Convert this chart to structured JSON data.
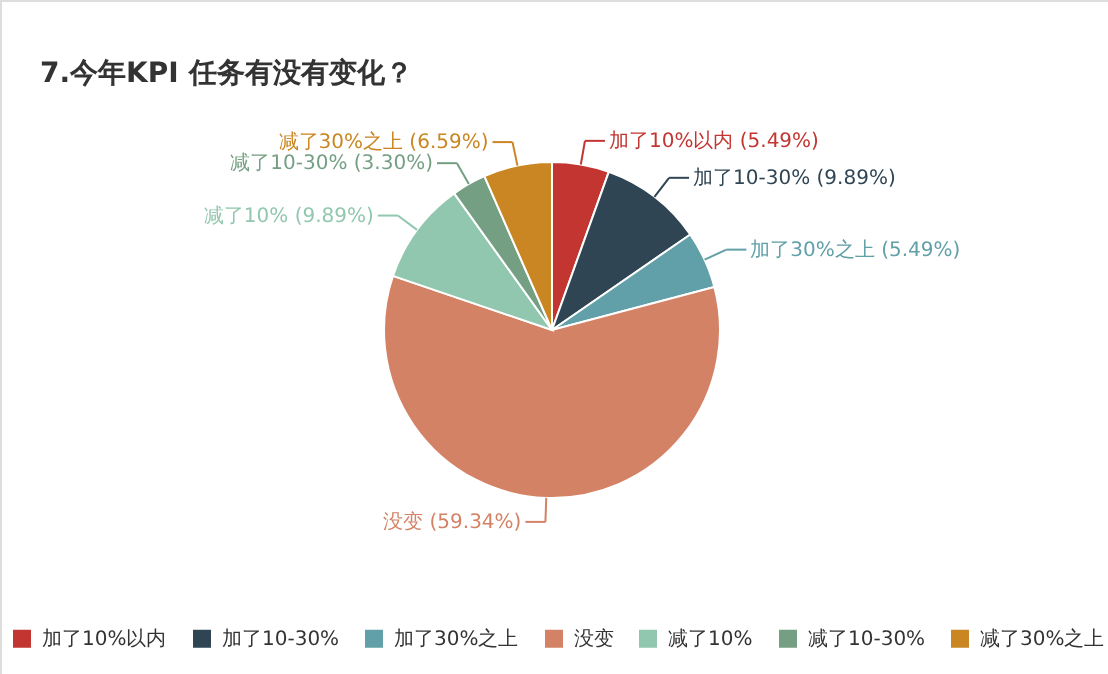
{
  "chart_data": {
    "type": "pie",
    "title": "7.今年KPI 任务有没有变化？",
    "categories": [
      "加了10%以内",
      "加了10-30%",
      "加了30%之上",
      "没变",
      "减了10%",
      "减了10-30%",
      "减了30%之上"
    ],
    "values": [
      5.49,
      9.89,
      5.49,
      59.34,
      9.89,
      3.3,
      6.59
    ],
    "value_labels": [
      "加了10%以内 (5.49%)",
      "加了10-30% (9.89%)",
      "加了30%之上 (5.49%)",
      "没变 (59.34%)",
      "减了10% (9.89%)",
      "减了10-30% (3.30%)",
      "减了30%之上 (6.59%)"
    ],
    "colors": [
      "#c23531",
      "#2f4554",
      "#61a0a8",
      "#d48265",
      "#91c7ae",
      "#749f83",
      "#ca8622"
    ],
    "legend": "bottom"
  }
}
